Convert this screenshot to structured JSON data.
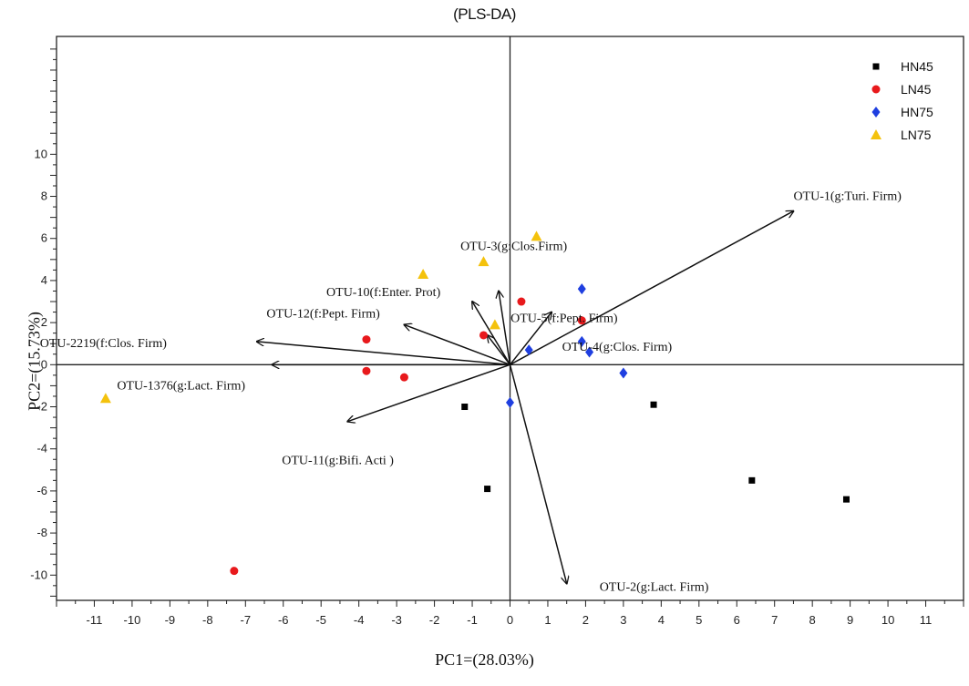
{
  "chart_data": {
    "type": "scatter",
    "title": "(PLS-DA)",
    "xlabel": "PC1=(28.03%)",
    "ylabel": "PC2=(15.73%)",
    "xlim": [
      -12,
      12
    ],
    "ylim": [
      -11.2,
      15.6
    ],
    "x_ticks": [
      -11,
      -10,
      -9,
      -8,
      -7,
      -6,
      -5,
      -4,
      -3,
      -2,
      -1,
      0,
      1,
      2,
      3,
      4,
      5,
      6,
      7,
      8,
      9,
      10,
      11
    ],
    "y_ticks": [
      -10,
      -8,
      -6,
      -4,
      -2,
      0,
      2,
      4,
      6,
      8,
      10
    ],
    "legend_position": "top-right",
    "grid": false,
    "series": [
      {
        "name": "HN45",
        "marker": "square",
        "color": "#000000",
        "points": [
          [
            -1.2,
            -2.0
          ],
          [
            -0.6,
            -5.9
          ],
          [
            3.8,
            -1.9
          ],
          [
            6.4,
            -5.5
          ],
          [
            8.9,
            -6.4
          ]
        ]
      },
      {
        "name": "LN45",
        "marker": "circle",
        "color": "#e8191c",
        "points": [
          [
            -7.3,
            -9.8
          ],
          [
            -3.8,
            1.2
          ],
          [
            -3.8,
            -0.3
          ],
          [
            -2.8,
            -0.6
          ],
          [
            -0.7,
            1.4
          ],
          [
            0.3,
            3.0
          ],
          [
            1.9,
            2.1
          ]
        ]
      },
      {
        "name": "HN75",
        "marker": "diamond",
        "color": "#1f3fe0",
        "points": [
          [
            0.0,
            -1.8
          ],
          [
            0.5,
            0.7
          ],
          [
            1.9,
            3.6
          ],
          [
            2.1,
            0.6
          ],
          [
            1.9,
            1.1
          ],
          [
            3.0,
            -0.4
          ]
        ]
      },
      {
        "name": "LN75",
        "marker": "triangle",
        "color": "#f4c20d",
        "points": [
          [
            -10.7,
            -1.6
          ],
          [
            -2.3,
            4.3
          ],
          [
            -0.7,
            4.9
          ],
          [
            -0.4,
            1.9
          ],
          [
            0.7,
            6.1
          ]
        ]
      }
    ],
    "loadings": [
      {
        "label": "OTU-1(g:Turi. Firm)",
        "x": 7.5,
        "y": 7.3
      },
      {
        "label": "OTU-2(g:Lact. Firm)",
        "x": 1.5,
        "y": -10.4
      },
      {
        "label": "OTU-3(g:Clos.Firm)",
        "x": -0.3,
        "y": 3.5
      },
      {
        "label": "OTU-4(g:Clos. Firm)",
        "x": -0.6,
        "y": 1.4
      },
      {
        "label": "OTU-5(f:Pept. Firm)",
        "x": 1.1,
        "y": 2.5
      },
      {
        "label": "OTU-10(f:Enter. Prot)",
        "x": -1.0,
        "y": 3.0
      },
      {
        "label": "OTU-12(f:Pept. Firm)",
        "x": -2.8,
        "y": 1.9
      },
      {
        "label": "OTU-2219(f:Clos. Firm)",
        "x": -6.7,
        "y": 1.1
      },
      {
        "label": "OTU-1376(g:Lact. Firm)",
        "x": -6.3,
        "y": 0.0
      },
      {
        "label": "OTU-11(g:Bifi. Acti )",
        "x": -4.3,
        "y": -2.7
      }
    ]
  }
}
